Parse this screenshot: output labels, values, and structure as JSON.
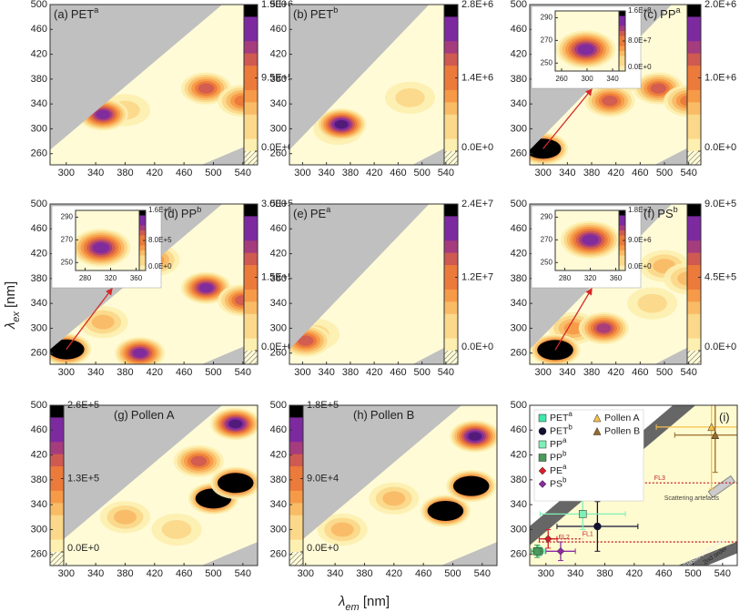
{
  "chart_data": [
    {
      "type": "contour",
      "xlim": [
        278,
        560
      ],
      "ylim": [
        242,
        500
      ],
      "xticks": [
        300,
        340,
        380,
        420,
        460,
        500,
        540
      ],
      "yticks": [
        260,
        300,
        340,
        380,
        420,
        460,
        500
      ],
      "y_label": "λ",
      "y_label_sub": "ex",
      "y_label_unit": " [nm]",
      "x_label": "λ",
      "x_label_sub": "em",
      "x_label_unit": " [nm]",
      "panels": [
        {
          "label": "(a)",
          "name": "PET",
          "sup": "a",
          "clim": [
            0,
            1900000
          ],
          "cticks": [
            {
              "value": 0,
              "label": "0.0E+0"
            },
            {
              "value": 950000,
              "label": "9.5E+5"
            },
            {
              "value": 1900000,
              "label": "1.9E+6"
            }
          ],
          "peaks": [
            {
              "x": 380,
              "y": 330,
              "v": 300000
            },
            {
              "x": 350,
              "y": 323,
              "v": 1500000
            },
            {
              "x": 490,
              "y": 365,
              "v": 1100000
            },
            {
              "x": 540,
              "y": 345,
              "v": 900000
            }
          ]
        },
        {
          "label": "(b)",
          "name": "PET",
          "sup": "b",
          "clim": [
            0,
            2800000
          ],
          "cticks": [
            {
              "value": 0,
              "label": "0.0E+0"
            },
            {
              "value": 1400000,
              "label": "1.4E+6"
            },
            {
              "value": 2800000,
              "label": "2.8E+6"
            }
          ],
          "peaks": [
            {
              "x": 480,
              "y": 350,
              "v": 400000
            },
            {
              "x": 360,
              "y": 300,
              "v": 900000
            },
            {
              "x": 365,
              "y": 307,
              "v": 2500000
            }
          ]
        },
        {
          "label": "(c)",
          "name": "PP",
          "sup": "a",
          "clim": [
            0,
            2000000
          ],
          "cticks": [
            {
              "value": 0,
              "label": "0.0E+0"
            },
            {
              "value": 1000000,
              "label": "1.0E+6"
            },
            {
              "value": 2000000,
              "label": "2.0E+6"
            }
          ],
          "peaks": [
            {
              "x": 420,
              "y": 380,
              "v": 400000
            },
            {
              "x": 410,
              "y": 345,
              "v": 1300000
            },
            {
              "x": 490,
              "y": 365,
              "v": 1200000
            },
            {
              "x": 540,
              "y": 345,
              "v": 1000000
            },
            {
              "x": 300,
              "y": 268,
              "v": 3000000
            }
          ],
          "inset": {
            "xlim": [
              250,
              350
            ],
            "ylim": [
              243,
              296
            ],
            "xticks": [
              260,
              300,
              340
            ],
            "yticks": [
              250,
              270,
              290
            ],
            "clim": [
              0,
              160000000
            ],
            "cticks": [
              {
                "value": 0,
                "label": "0.0E+0"
              },
              {
                "value": 80000000,
                "label": "8.0E+7"
              },
              {
                "value": 160000000,
                "label": "1.6E+8"
              }
            ],
            "peaks": [
              {
                "x": 298,
                "y": 262,
                "v": 140000000
              }
            ]
          }
        },
        {
          "label": "(d)",
          "name": "PP",
          "sup": "b",
          "clim": [
            0,
            300000
          ],
          "cticks": [
            {
              "value": 0,
              "label": "0.0E+0"
            },
            {
              "value": 150000,
              "label": "1.5E+5"
            },
            {
              "value": 300000,
              "label": "3.0E+5"
            }
          ],
          "peaks": [
            {
              "x": 350,
              "y": 310,
              "v": 80000
            },
            {
              "x": 420,
              "y": 410,
              "v": 120000
            },
            {
              "x": 400,
              "y": 260,
              "v": 260000
            },
            {
              "x": 490,
              "y": 365,
              "v": 250000
            },
            {
              "x": 540,
              "y": 345,
              "v": 200000
            },
            {
              "x": 300,
              "y": 266,
              "v": 400000
            }
          ],
          "inset": {
            "xlim": [
              265,
              365
            ],
            "ylim": [
              243,
              296
            ],
            "xticks": [
              280,
              320,
              360
            ],
            "yticks": [
              250,
              270,
              290
            ],
            "clim": [
              0,
              1600000
            ],
            "cticks": [
              {
                "value": 0,
                "label": "0.0E+0"
              },
              {
                "value": 800000,
                "label": "8.0E+5"
              },
              {
                "value": 1600000,
                "label": "1.6E+6"
              }
            ],
            "peaks": [
              {
                "x": 305,
                "y": 263,
                "v": 1400000
              }
            ]
          }
        },
        {
          "label": "(e)",
          "name": "PE",
          "sup": "a",
          "clim": [
            0,
            24000000
          ],
          "cticks": [
            {
              "value": 0,
              "label": "0.0E+0"
            },
            {
              "value": 12000000,
              "label": "1.2E+7"
            },
            {
              "value": 24000000,
              "label": "2.4E+7"
            }
          ],
          "peaks": [
            {
              "x": 320,
              "y": 290,
              "v": 4000000
            },
            {
              "x": 305,
              "y": 280,
              "v": 14000000
            }
          ]
        },
        {
          "label": "(f)",
          "name": "PS",
          "sup": "b",
          "clim": [
            0,
            900000
          ],
          "cticks": [
            {
              "value": 0,
              "label": "0.0E+0"
            },
            {
              "value": 450000,
              "label": "4.5E+5"
            },
            {
              "value": 900000,
              "label": "9.0E+5"
            }
          ],
          "peaks": [
            {
              "x": 500,
              "y": 400,
              "v": 300000
            },
            {
              "x": 420,
              "y": 410,
              "v": 300000
            },
            {
              "x": 540,
              "y": 380,
              "v": 300000
            },
            {
              "x": 480,
              "y": 340,
              "v": 200000
            },
            {
              "x": 350,
              "y": 300,
              "v": 400000
            },
            {
              "x": 400,
              "y": 300,
              "v": 700000
            },
            {
              "x": 320,
              "y": 265,
              "v": 1200000
            }
          ],
          "inset": {
            "xlim": [
              265,
              365
            ],
            "ylim": [
              243,
              296
            ],
            "xticks": [
              280,
              320,
              360
            ],
            "yticks": [
              250,
              270,
              290
            ],
            "clim": [
              0,
              18000000
            ],
            "cticks": [
              {
                "value": 0,
                "label": "0.0E+0"
              },
              {
                "value": 9000000,
                "label": "9.0E+6"
              },
              {
                "value": 18000000,
                "label": "1.8E+7"
              }
            ],
            "peaks": [
              {
                "x": 320,
                "y": 270,
                "v": 16000000
              }
            ]
          }
        },
        {
          "label": "(g)",
          "name": "Pollen A",
          "clim": [
            0,
            260000
          ],
          "cticks": [
            {
              "value": 0,
              "label": "0.0E+0"
            },
            {
              "value": 130000,
              "label": "1.3E+5"
            },
            {
              "value": 260000,
              "label": "2.6E+5"
            }
          ],
          "peaks": [
            {
              "x": 380,
              "y": 320,
              "v": 70000
            },
            {
              "x": 450,
              "y": 300,
              "v": 50000
            },
            {
              "x": 480,
              "y": 410,
              "v": 160000
            },
            {
              "x": 530,
              "y": 470,
              "v": 240000
            },
            {
              "x": 500,
              "y": 350,
              "v": 300000
            },
            {
              "x": 530,
              "y": 375,
              "v": 300000
            }
          ]
        },
        {
          "label": "(h)",
          "name": "Pollen B",
          "clim": [
            0,
            180000
          ],
          "cticks": [
            {
              "value": 0,
              "label": "0.0E+0"
            },
            {
              "value": 90000,
              "label": "9.0E+4"
            },
            {
              "value": 180000,
              "label": "1.8E+5"
            }
          ],
          "peaks": [
            {
              "x": 350,
              "y": 300,
              "v": 50000
            },
            {
              "x": 420,
              "y": 350,
              "v": 60000
            },
            {
              "x": 530,
              "y": 450,
              "v": 180000
            },
            {
              "x": 490,
              "y": 330,
              "v": 200000
            },
            {
              "x": 525,
              "y": 370,
              "v": 200000
            }
          ]
        }
      ]
    },
    {
      "type": "scatter",
      "label": "(i)",
      "xlim": [
        278,
        560
      ],
      "ylim": [
        242,
        500
      ],
      "xticks": [
        300,
        340,
        380,
        420,
        460,
        500,
        540
      ],
      "yticks": [
        260,
        300,
        340,
        380,
        420,
        460,
        500
      ],
      "series": [
        {
          "name": "PET",
          "sup": "a",
          "color": "#3ee8a8",
          "marker": "square",
          "x": 290,
          "y": 265,
          "xerr": 8,
          "yerr": 8
        },
        {
          "name": "PET",
          "sup": "b",
          "color": "#111133",
          "marker": "circle",
          "x": 370,
          "y": 305,
          "xerr": 55,
          "yerr": 40
        },
        {
          "name": "PP",
          "sup": "a",
          "color": "#7df0b8",
          "marker": "square",
          "x": 350,
          "y": 325,
          "xerr": 58,
          "yerr": 25
        },
        {
          "name": "PP",
          "sup": "b",
          "color": "#4a9a5a",
          "marker": "square",
          "x": 288,
          "y": 265,
          "xerr": 8,
          "yerr": 10
        },
        {
          "name": "PE",
          "sup": "a",
          "color": "#d4202a",
          "marker": "diamond",
          "x": 303,
          "y": 285,
          "xerr": 12,
          "yerr": 15
        },
        {
          "name": "PS",
          "sup": "b",
          "color": "#8a2ca0",
          "marker": "diamond",
          "x": 320,
          "y": 265,
          "xerr": 20,
          "yerr": 15
        },
        {
          "name": "Pollen A",
          "color": "#f5c04a",
          "marker": "triangle",
          "x": 525,
          "y": 465,
          "xerr": 75,
          "yerr": 100
        },
        {
          "name": "Pollen B",
          "color": "#9a6a2a",
          "marker": "triangle",
          "x": 530,
          "y": 452,
          "xerr": 55,
          "yerr": 60
        }
      ],
      "fl_lines": [
        {
          "label": "FL3",
          "y": 375,
          "x0": 420,
          "x1": 560
        },
        {
          "label": "FL1",
          "y": 285,
          "x0": 290,
          "x1": 350
        },
        {
          "label": "FL2",
          "y": 280,
          "x0": 290,
          "x1": 560
        }
      ],
      "annotations": [
        "Elastic scattering 1st order",
        "Scattering artefacts",
        "Elastic scattering",
        "2nd order"
      ]
    }
  ]
}
